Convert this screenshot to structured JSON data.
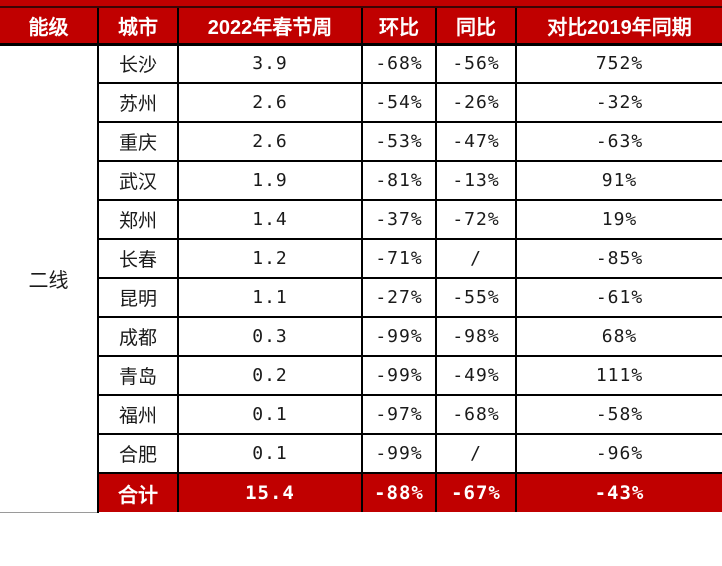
{
  "chart_data": {
    "type": "table",
    "header": {
      "tier": "能级",
      "city": "城市",
      "week": "2022年春节周",
      "mom": "环比",
      "yoy": "同比",
      "vs2019": "对比2019年同期"
    },
    "tier_label": "二线",
    "rows": [
      {
        "city": "长沙",
        "week": "3.9",
        "mom": "-68%",
        "yoy": "-56%",
        "vs2019": "752%"
      },
      {
        "city": "苏州",
        "week": "2.6",
        "mom": "-54%",
        "yoy": "-26%",
        "vs2019": "-32%"
      },
      {
        "city": "重庆",
        "week": "2.6",
        "mom": "-53%",
        "yoy": "-47%",
        "vs2019": "-63%"
      },
      {
        "city": "武汉",
        "week": "1.9",
        "mom": "-81%",
        "yoy": "-13%",
        "vs2019": "91%"
      },
      {
        "city": "郑州",
        "week": "1.4",
        "mom": "-37%",
        "yoy": "-72%",
        "vs2019": "19%"
      },
      {
        "city": "长春",
        "week": "1.2",
        "mom": "-71%",
        "yoy": "/",
        "vs2019": "-85%"
      },
      {
        "city": "昆明",
        "week": "1.1",
        "mom": "-27%",
        "yoy": "-55%",
        "vs2019": "-61%"
      },
      {
        "city": "成都",
        "week": "0.3",
        "mom": "-99%",
        "yoy": "-98%",
        "vs2019": "68%"
      },
      {
        "city": "青岛",
        "week": "0.2",
        "mom": "-99%",
        "yoy": "-49%",
        "vs2019": "111%"
      },
      {
        "city": "福州",
        "week": "0.1",
        "mom": "-97%",
        "yoy": "-68%",
        "vs2019": "-58%"
      },
      {
        "city": "合肥",
        "week": "0.1",
        "mom": "-99%",
        "yoy": "/",
        "vs2019": "-96%"
      }
    ],
    "total": {
      "label": "合计",
      "week": "15.4",
      "mom": "-88%",
      "yoy": "-67%",
      "vs2019": "-43%"
    }
  },
  "colors": {
    "header_bg": "#C00000",
    "total_bg": "#C00000",
    "header_text": "#FFFFFF",
    "body_text": "#1A1A1A",
    "border": "#000000"
  }
}
